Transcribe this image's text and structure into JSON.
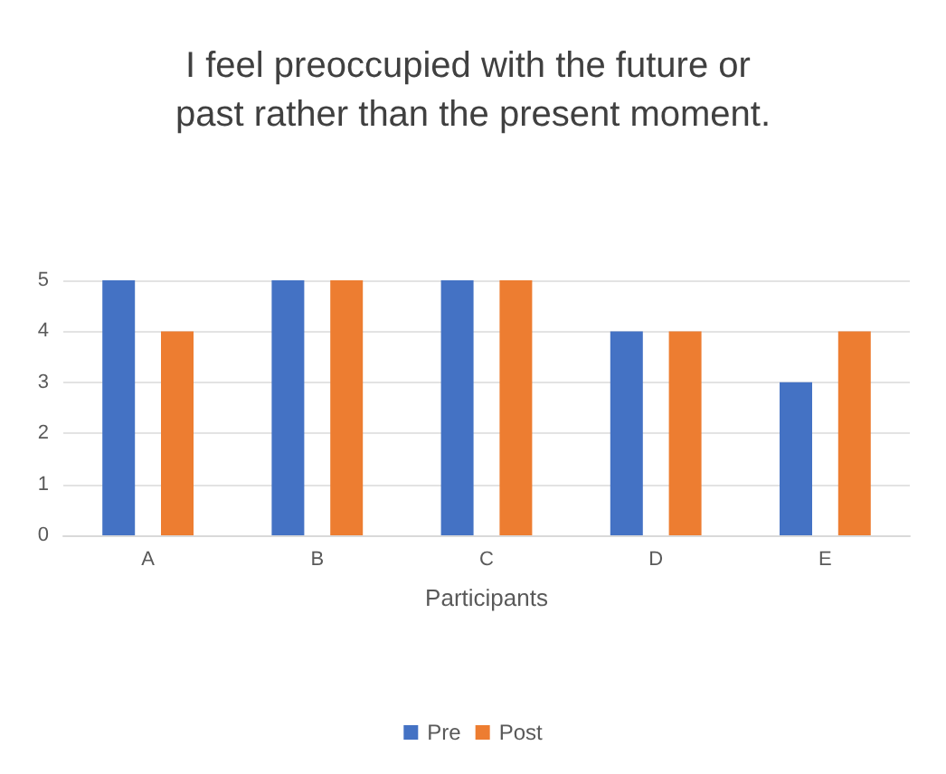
{
  "chart_data": {
    "type": "bar",
    "title": "I feel preoccupied with the future or past rather than the present moment.",
    "xlabel": "Participants",
    "categories": [
      "A",
      "B",
      "C",
      "D",
      "E"
    ],
    "series": [
      {
        "name": "Pre",
        "color": "#4472c4",
        "values": [
          5,
          5,
          5,
          4,
          3
        ]
      },
      {
        "name": "Post",
        "color": "#ed7d31",
        "values": [
          4,
          5,
          5,
          4,
          4
        ]
      }
    ],
    "ylim": [
      0,
      5
    ],
    "yticks": [
      0,
      1,
      2,
      3,
      4,
      5
    ],
    "grid": "y",
    "legend": "bottom"
  }
}
